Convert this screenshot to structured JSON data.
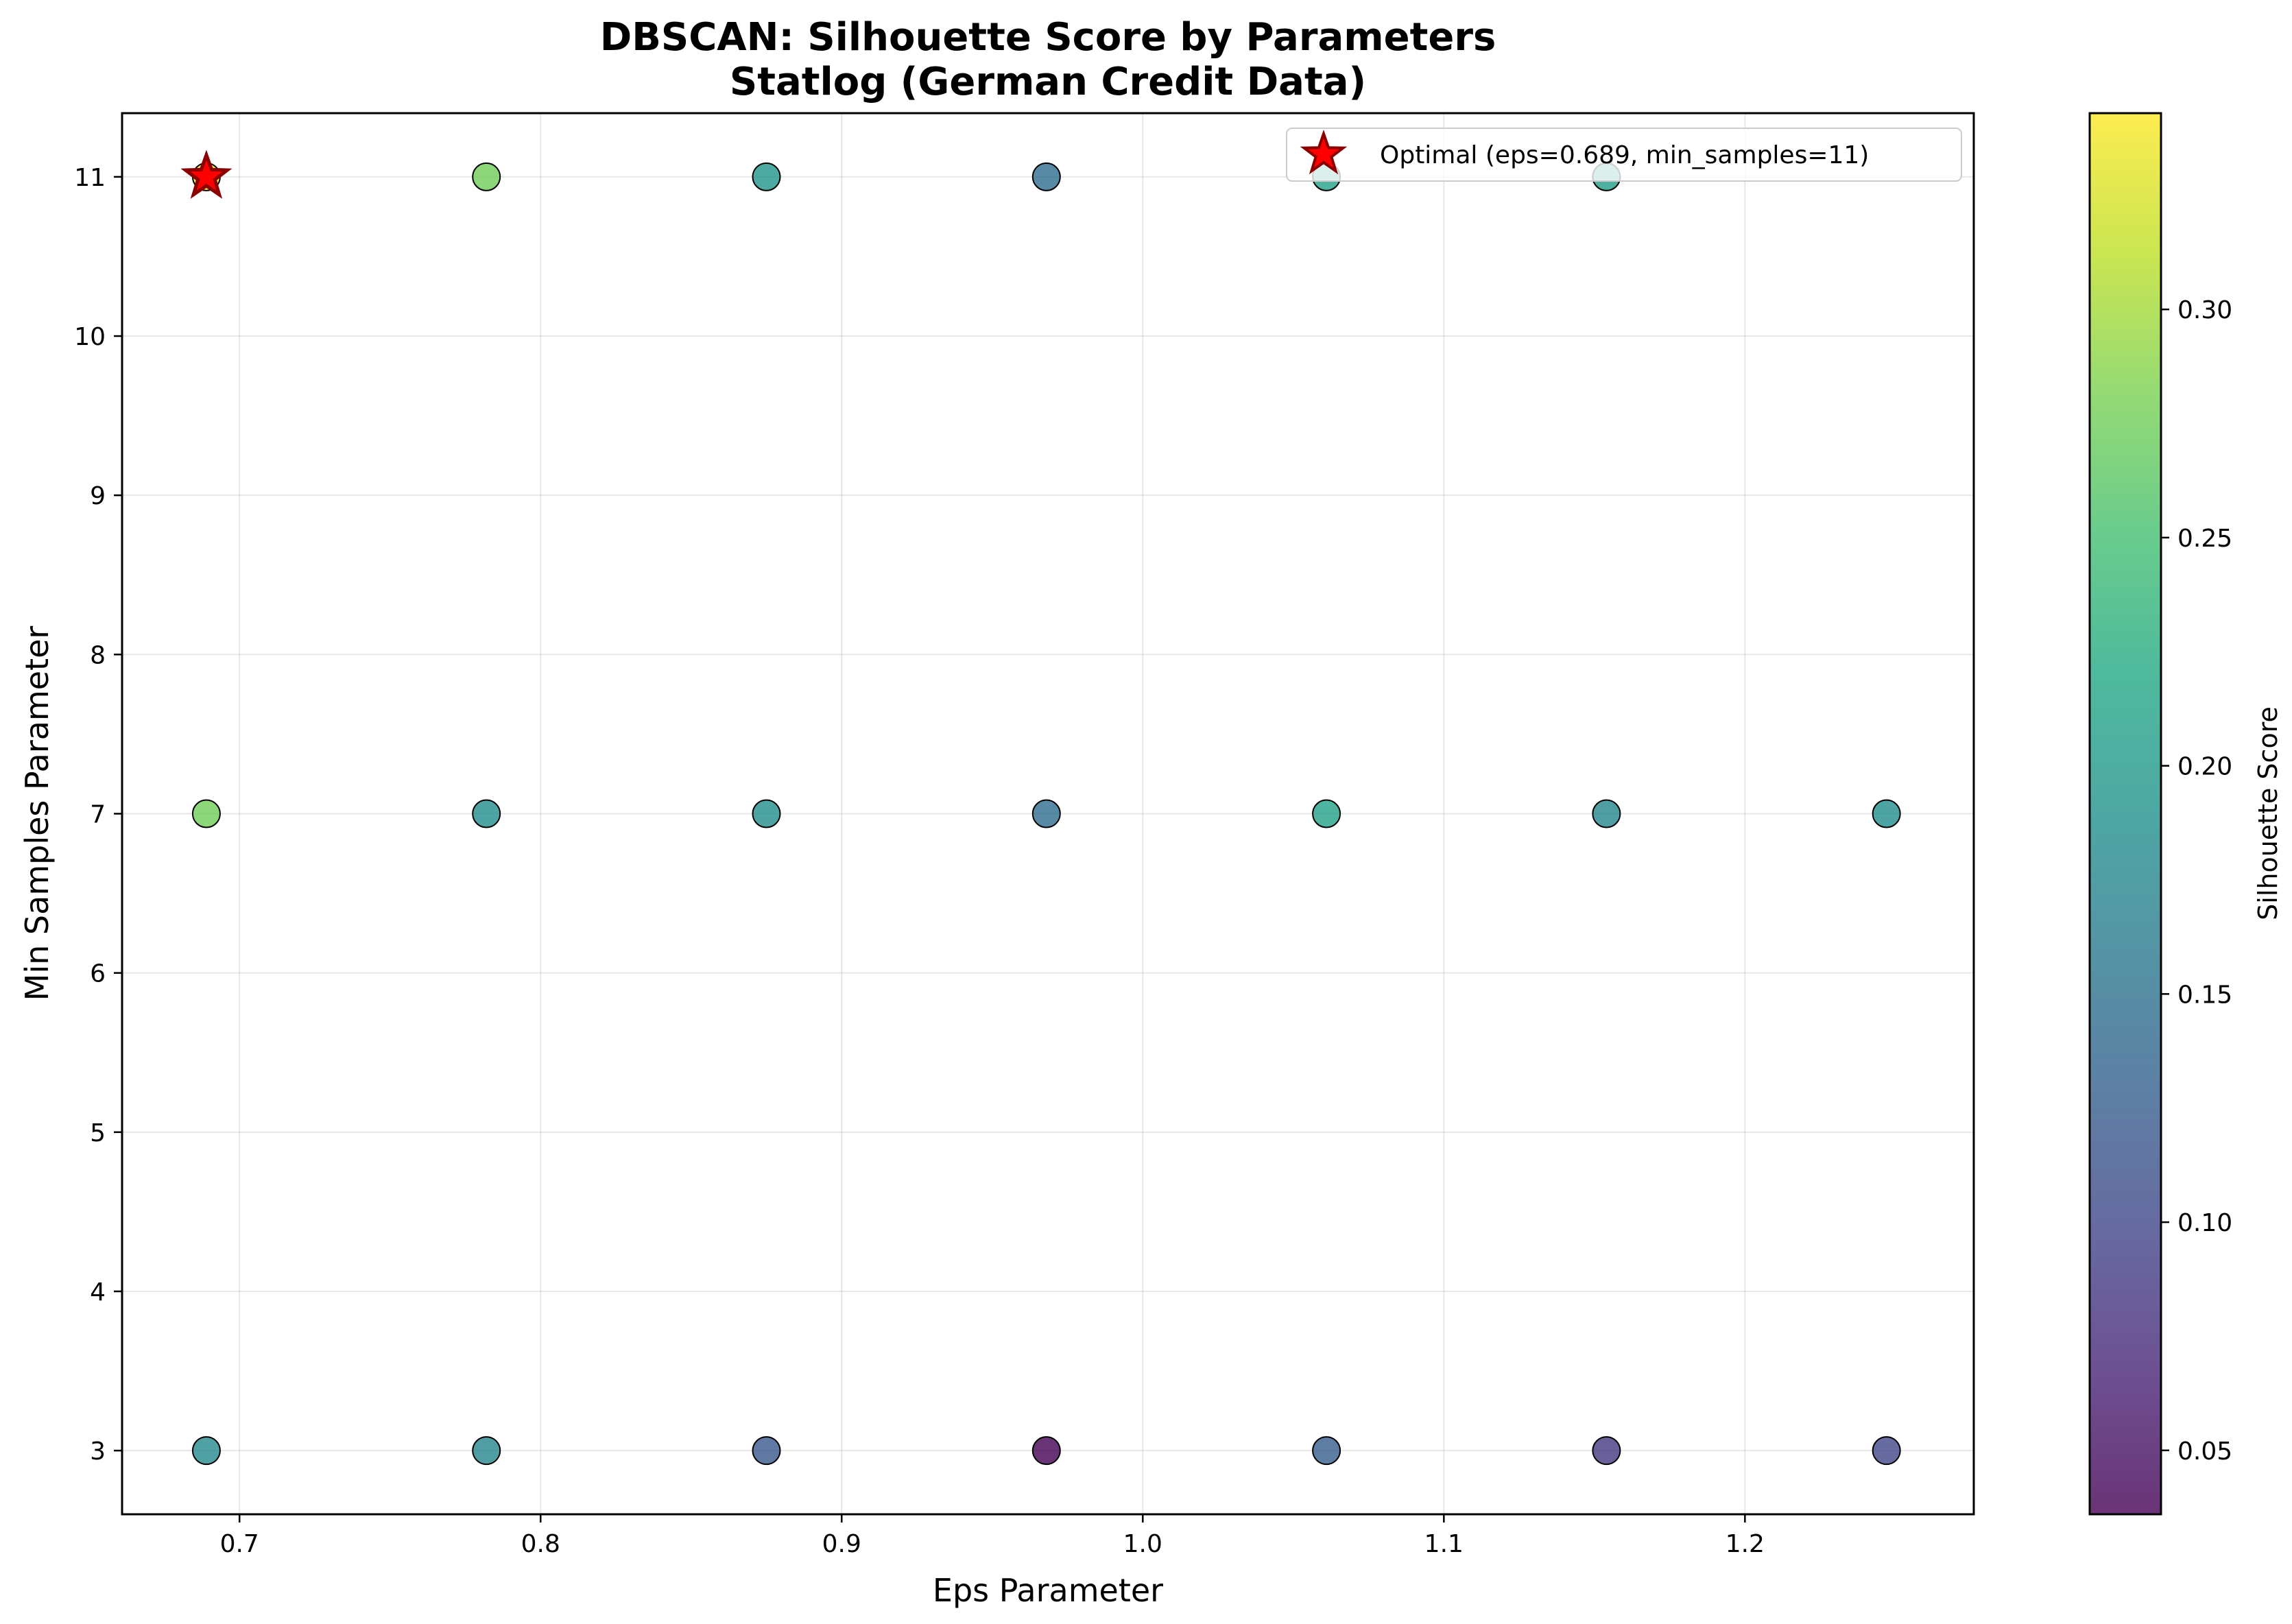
{
  "chart_data": {
    "type": "scatter",
    "title": "DBSCAN: Silhouette Score by Parameters",
    "subtitle": "Statlog (German Credit Data)",
    "xlabel": "Eps Parameter",
    "ylabel": "Min Samples Parameter",
    "colorbar_label": "Silhouette Score",
    "xlim": [
      0.661,
      1.276
    ],
    "ylim": [
      2.6,
      11.4
    ],
    "x_ticks": [
      "0.7",
      "0.8",
      "0.9",
      "1.0",
      "1.1",
      "1.2"
    ],
    "y_ticks": [
      "3",
      "4",
      "5",
      "6",
      "7",
      "8",
      "9",
      "10",
      "11"
    ],
    "colorbar_range": [
      0.036,
      0.343
    ],
    "colorbar_ticks": [
      "0.05",
      "0.10",
      "0.15",
      "0.20",
      "0.25",
      "0.30"
    ],
    "colormap": "viridis",
    "grid": true,
    "legend_position": "upper-right",
    "legend": {
      "label": "Optimal (eps=0.689, min_samples=11)",
      "marker": "star",
      "color": "#ff0000"
    },
    "optimal": {
      "eps": 0.689,
      "min_samples": 11
    },
    "points": [
      {
        "eps": 0.689,
        "min_samples": 3,
        "score": 0.18
      },
      {
        "eps": 0.782,
        "min_samples": 3,
        "score": 0.175
      },
      {
        "eps": 0.875,
        "min_samples": 3,
        "score": 0.12
      },
      {
        "eps": 0.968,
        "min_samples": 3,
        "score": 0.036
      },
      {
        "eps": 1.061,
        "min_samples": 3,
        "score": 0.125
      },
      {
        "eps": 1.154,
        "min_samples": 3,
        "score": 0.085
      },
      {
        "eps": 1.247,
        "min_samples": 3,
        "score": 0.1
      },
      {
        "eps": 0.689,
        "min_samples": 7,
        "score": 0.275
      },
      {
        "eps": 0.782,
        "min_samples": 7,
        "score": 0.185
      },
      {
        "eps": 0.875,
        "min_samples": 7,
        "score": 0.185
      },
      {
        "eps": 0.968,
        "min_samples": 7,
        "score": 0.145
      },
      {
        "eps": 1.061,
        "min_samples": 7,
        "score": 0.21
      },
      {
        "eps": 1.154,
        "min_samples": 7,
        "score": 0.175
      },
      {
        "eps": 1.247,
        "min_samples": 7,
        "score": 0.185
      },
      {
        "eps": 0.689,
        "min_samples": 11,
        "score": 0.343
      },
      {
        "eps": 0.782,
        "min_samples": 11,
        "score": 0.275
      },
      {
        "eps": 0.875,
        "min_samples": 11,
        "score": 0.195
      },
      {
        "eps": 0.968,
        "min_samples": 11,
        "score": 0.145
      },
      {
        "eps": 1.061,
        "min_samples": 11,
        "score": 0.21
      },
      {
        "eps": 1.154,
        "min_samples": 11,
        "score": 0.205
      }
    ]
  }
}
